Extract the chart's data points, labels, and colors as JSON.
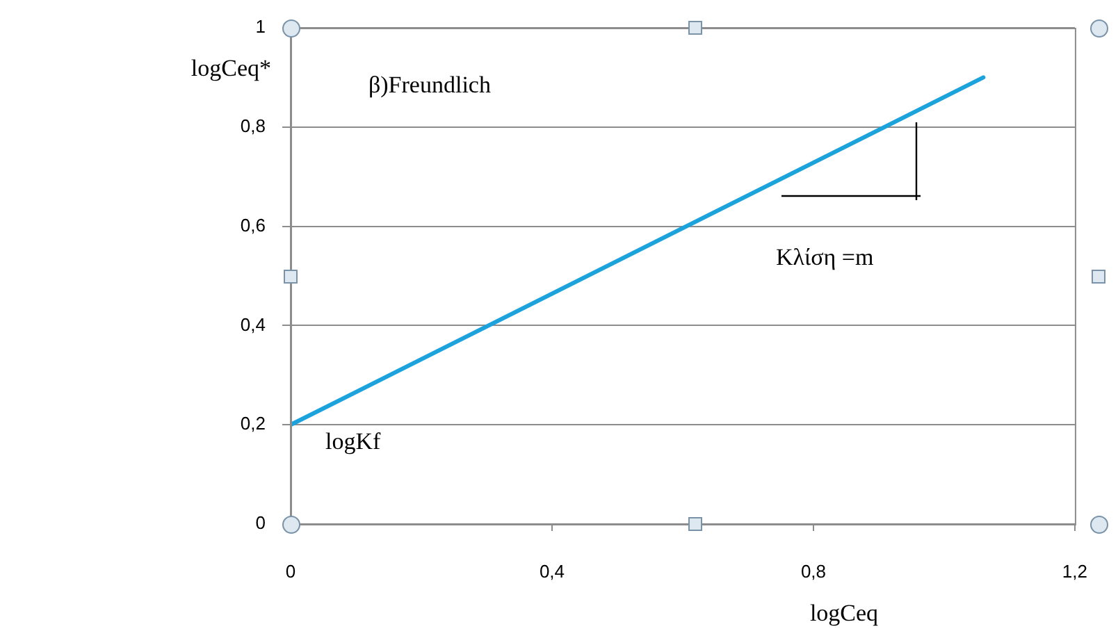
{
  "chart_data": {
    "type": "line",
    "xlabel": "logCeq",
    "ylabel": "logCeq*",
    "x": [
      0,
      1.06
    ],
    "series": [
      {
        "color": "#1ca3dc",
        "values": [
          0.2,
          0.9
        ]
      }
    ],
    "xlim": [
      0,
      1.2
    ],
    "xticks": [
      0,
      {
        "value": 0.4,
        "label": "0,4"
      },
      {
        "value": 0.8,
        "label": "0,8"
      },
      {
        "value": 1.2,
        "label": "1,2"
      }
    ],
    "ylim": [
      0,
      1
    ],
    "yticks": [
      0,
      {
        "value": 0.2,
        "label": "0,2"
      },
      {
        "value": 0.4,
        "label": "0,4"
      },
      {
        "value": 0.6,
        "label": "0,6"
      },
      {
        "value": 0.8,
        "label": "0,8"
      },
      1
    ],
    "grid": "y",
    "legend": false,
    "marker": "none",
    "line_style": "solid",
    "annotations": [
      "β)Freundlich",
      {
        "text": "logKf",
        "x": 0,
        "y": 0.2
      },
      "Κλίση =m"
    ]
  }
}
